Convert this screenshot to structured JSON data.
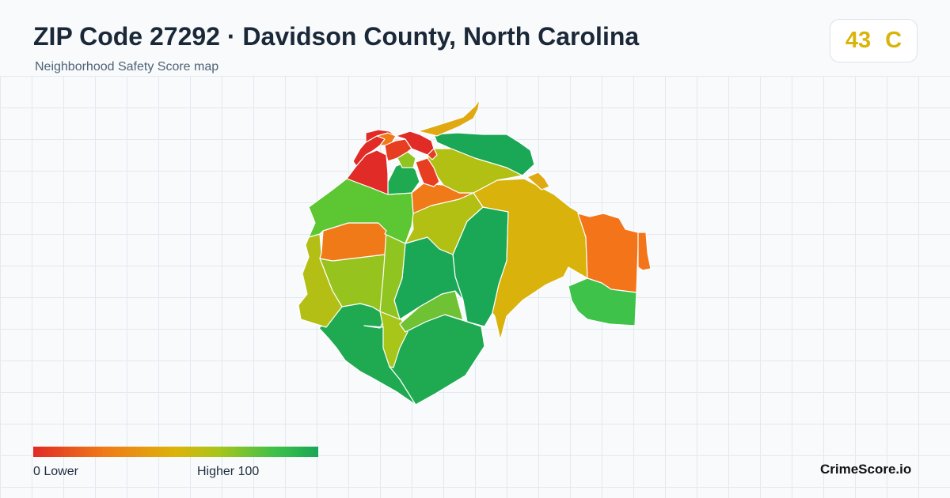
{
  "header": {
    "title": "ZIP Code 27292 · Davidson County, North Carolina",
    "subtitle": "Neighborhood Safety Score map"
  },
  "score": {
    "value": "43",
    "grade": "C",
    "color": "#d9b40b"
  },
  "legend": {
    "min_label": "0  Lower",
    "max_label": "Higher  100",
    "colors": [
      "#e02b26",
      "#f07a18",
      "#dcb40a",
      "#a8c51a",
      "#3dc04a",
      "#1aa756"
    ]
  },
  "brand": "CrimeScore.io"
}
